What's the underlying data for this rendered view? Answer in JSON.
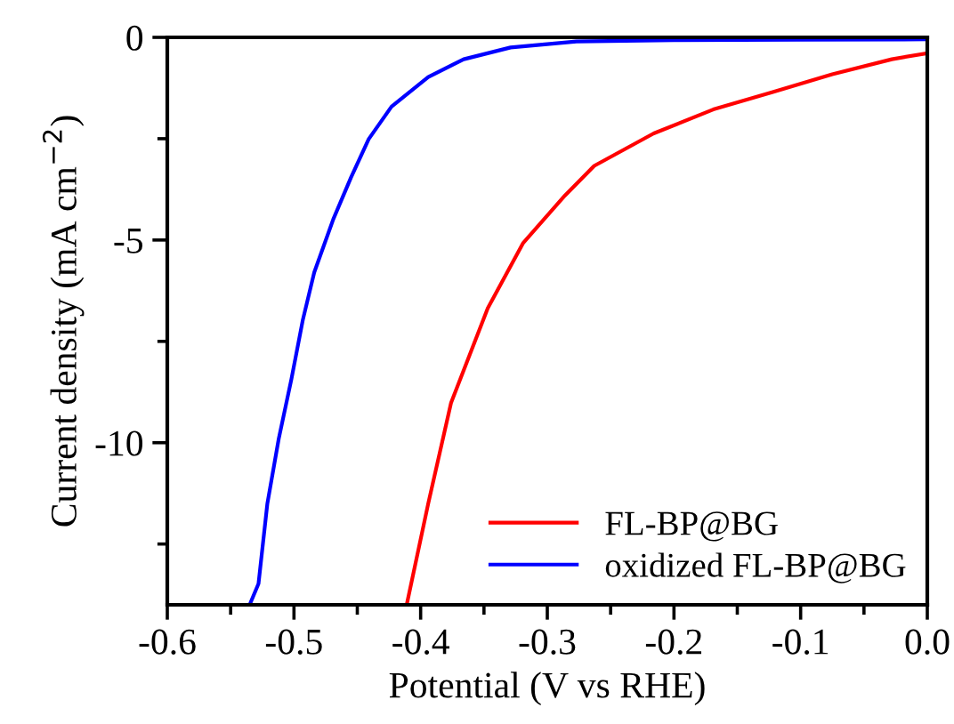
{
  "chart_data": {
    "type": "line",
    "xlabel": "Potential (V vs RHE)",
    "ylabel": "Current density (mA cm$^{−2}$)",
    "xlim": [
      -0.6,
      0.0
    ],
    "ylim": [
      -14,
      0
    ],
    "xticks": [
      -0.6,
      -0.5,
      -0.4,
      -0.3,
      -0.2,
      -0.1,
      {
        "value": 0.0,
        "label": "0.0"
      }
    ],
    "yticks": [
      -10,
      -5,
      0
    ],
    "grid": false,
    "legend": "bottom right",
    "marker": "none",
    "line_style": "solid",
    "series": [
      {
        "name": "FL-BP@BG",
        "color": "#ff0000",
        "x": [
          -0.411,
          -0.394,
          -0.376,
          -0.347,
          -0.319,
          -0.286,
          -0.263,
          -0.216,
          -0.169,
          -0.122,
          -0.075,
          -0.028,
          0.0
        ],
        "values": [
          -14.0,
          -11.5,
          -9.02,
          -6.68,
          -5.07,
          -3.9,
          -3.17,
          -2.37,
          -1.78,
          -1.35,
          -0.91,
          -0.54,
          -0.39
        ]
      },
      {
        "name": "oxidized FL-BP@BG",
        "color": "#0000ff",
        "x": [
          -0.535,
          -0.528,
          -0.521,
          -0.512,
          -0.502,
          -0.493,
          -0.484,
          -0.469,
          -0.455,
          -0.441,
          -0.423,
          -0.394,
          -0.366,
          -0.329,
          -0.277,
          -0.2,
          -0.1,
          0.0
        ],
        "values": [
          -14.0,
          -13.48,
          -11.5,
          -9.9,
          -8.43,
          -6.97,
          -5.8,
          -4.49,
          -3.46,
          -2.51,
          -1.71,
          -0.98,
          -0.54,
          -0.25,
          -0.1,
          -0.07,
          -0.06,
          -0.05
        ]
      }
    ]
  }
}
